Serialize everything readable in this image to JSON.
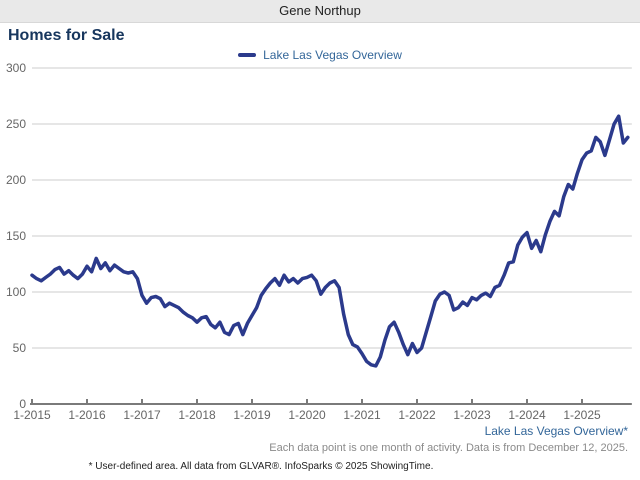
{
  "header": {
    "agent_name": "Gene Northup"
  },
  "title": "Homes for Sale",
  "legend": {
    "label": "Lake Las Vegas Overview",
    "color": "#2b3a8c"
  },
  "footer": {
    "series_link": "Lake Las Vegas Overview*",
    "note": "Each data point is one month of activity. Data is from December 12, 2025.",
    "disclaimer": "* User-defined area. All data from GLVAR®. InfoSparks © 2025 ShowingTime."
  },
  "chart_data": {
    "type": "line",
    "title": "Homes for Sale",
    "x_start": "2015-01",
    "x_end": "2025-11",
    "x_interval": "month",
    "x_tick_labels": [
      "1-2015",
      "1-2016",
      "1-2017",
      "1-2018",
      "1-2019",
      "1-2020",
      "1-2021",
      "1-2022",
      "1-2023",
      "1-2024",
      "1-2025"
    ],
    "x_ticks_every_months": 12,
    "ylim": [
      0,
      300
    ],
    "y_ticks": [
      0,
      50,
      100,
      150,
      200,
      250,
      300
    ],
    "grid": "horizontal",
    "legend_position": "top-center",
    "series": [
      {
        "name": "Lake Las Vegas Overview",
        "color": "#2b3a8c",
        "values": [
          115,
          112,
          110,
          113,
          116,
          120,
          122,
          116,
          119,
          115,
          112,
          116,
          123,
          118,
          130,
          121,
          126,
          119,
          124,
          121,
          118,
          117,
          118,
          112,
          97,
          90,
          95,
          96,
          94,
          87,
          90,
          88,
          86,
          82,
          79,
          77,
          73,
          77,
          78,
          71,
          68,
          73,
          64,
          62,
          70,
          72,
          62,
          72,
          79,
          86,
          97,
          103,
          108,
          112,
          106,
          115,
          109,
          112,
          108,
          112,
          113,
          115,
          110,
          98,
          104,
          108,
          110,
          104,
          80,
          62,
          53,
          51,
          45,
          38,
          35,
          34,
          42,
          57,
          69,
          73,
          64,
          53,
          44,
          54,
          46,
          50,
          64,
          78,
          92,
          98,
          100,
          97,
          84,
          86,
          91,
          88,
          95,
          93,
          97,
          99,
          96,
          104,
          106,
          115,
          126,
          127,
          142,
          149,
          153,
          139,
          146,
          136,
          151,
          163,
          172,
          168,
          185,
          196,
          192,
          206,
          218,
          224,
          226,
          238,
          234,
          222,
          236,
          250,
          257,
          233,
          238
        ]
      }
    ]
  }
}
